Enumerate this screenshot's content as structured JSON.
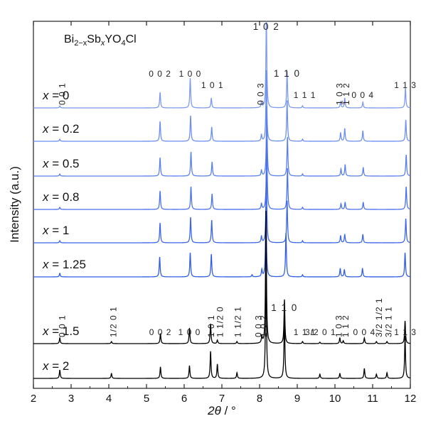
{
  "chart_data": {
    "type": "line",
    "title": "",
    "compound": {
      "parts": [
        {
          "text": "Bi",
          "style": "normal"
        },
        {
          "text": "2−x",
          "style": "sub"
        },
        {
          "text": "Sb",
          "style": "normal"
        },
        {
          "text": "x",
          "style": "sub-italic"
        },
        {
          "text": "YO",
          "style": "normal"
        },
        {
          "text": "4",
          "style": "sub"
        },
        {
          "text": "Cl",
          "style": "normal"
        }
      ]
    },
    "xlabel": {
      "var": "2θ",
      "unit": " / °"
    },
    "ylabel": "Intensity (a.u.)",
    "xlim": [
      2,
      12
    ],
    "xticks": [
      2,
      3,
      4,
      5,
      6,
      7,
      8,
      9,
      10,
      11,
      12
    ],
    "colors": {
      "x0": "#7c9bf0",
      "x0.2": "#6b8ff3",
      "x0.5": "#5a80f0",
      "x0.8": "#4a72ee",
      "x1": "#3b66ea",
      "x1.25": "#2f5ee6",
      "x1.5": "#000000",
      "x2": "#000000"
    },
    "series": [
      {
        "name": "x = 0",
        "var": "x",
        "val": "0",
        "peaks": [
          [
            2.7,
            3
          ],
          [
            5.36,
            22
          ],
          [
            6.16,
            42
          ],
          [
            6.72,
            14
          ],
          [
            8.05,
            8
          ],
          [
            8.18,
            130
          ],
          [
            8.73,
            52
          ],
          [
            9.14,
            3
          ],
          [
            10.15,
            9
          ],
          [
            10.26,
            14
          ],
          [
            10.74,
            8
          ],
          [
            11.87,
            28
          ]
        ]
      },
      {
        "name": "x = 0.2",
        "var": "x",
        "val": "0.2",
        "peaks": [
          [
            2.7,
            3
          ],
          [
            5.36,
            28
          ],
          [
            6.17,
            36
          ],
          [
            6.73,
            20
          ],
          [
            8.05,
            9
          ],
          [
            8.18,
            100
          ],
          [
            8.73,
            58
          ],
          [
            9.14,
            3
          ],
          [
            10.15,
            12
          ],
          [
            10.26,
            18
          ],
          [
            10.74,
            15
          ],
          [
            11.88,
            30
          ]
        ]
      },
      {
        "name": "x = 0.5",
        "var": "x",
        "val": "0.5",
        "peaks": [
          [
            2.7,
            3
          ],
          [
            5.36,
            26
          ],
          [
            6.18,
            34
          ],
          [
            6.74,
            20
          ],
          [
            8.05,
            8
          ],
          [
            8.19,
            100
          ],
          [
            8.74,
            55
          ],
          [
            9.14,
            3
          ],
          [
            10.16,
            10
          ],
          [
            10.27,
            16
          ],
          [
            10.75,
            12
          ],
          [
            11.89,
            30
          ]
        ]
      },
      {
        "name": "x = 0.8",
        "var": "x",
        "val": "0.8",
        "peaks": [
          [
            2.7,
            3
          ],
          [
            5.36,
            26
          ],
          [
            6.18,
            32
          ],
          [
            6.74,
            22
          ],
          [
            8.05,
            8
          ],
          [
            8.19,
            100
          ],
          [
            8.74,
            58
          ],
          [
            9.14,
            3
          ],
          [
            10.16,
            8
          ],
          [
            10.27,
            10
          ],
          [
            10.75,
            10
          ],
          [
            11.89,
            32
          ]
        ]
      },
      {
        "name": "x = 1",
        "var": "x",
        "val": "1",
        "peaks": [
          [
            2.7,
            3
          ],
          [
            5.36,
            28
          ],
          [
            6.17,
            36
          ],
          [
            6.73,
            32
          ],
          [
            8.05,
            9
          ],
          [
            8.18,
            100
          ],
          [
            8.73,
            60
          ],
          [
            9.14,
            3
          ],
          [
            10.15,
            10
          ],
          [
            10.26,
            12
          ],
          [
            10.74,
            12
          ],
          [
            11.88,
            34
          ]
        ]
      },
      {
        "name": "x = 1.25",
        "var": "x",
        "val": "1.25",
        "peaks": [
          [
            2.7,
            5
          ],
          [
            5.35,
            28
          ],
          [
            6.16,
            34
          ],
          [
            6.72,
            32
          ],
          [
            7.8,
            3
          ],
          [
            8.06,
            10
          ],
          [
            8.17,
            100
          ],
          [
            8.7,
            62
          ],
          [
            9.14,
            3
          ],
          [
            10.14,
            12
          ],
          [
            10.25,
            10
          ],
          [
            10.73,
            12
          ],
          [
            11.86,
            34
          ]
        ]
      },
      {
        "name": "x = 1.5",
        "var": "x",
        "val": "1.5",
        "peaks": [
          [
            2.7,
            8
          ],
          [
            4.07,
            3
          ],
          [
            5.37,
            14
          ],
          [
            6.14,
            22
          ],
          [
            6.7,
            28
          ],
          [
            6.88,
            5
          ],
          [
            7.4,
            3
          ],
          [
            8.06,
            9
          ],
          [
            8.17,
            190
          ],
          [
            8.66,
            62
          ],
          [
            9.14,
            3
          ],
          [
            9.6,
            2
          ],
          [
            10.13,
            8
          ],
          [
            10.22,
            4
          ],
          [
            10.78,
            8
          ],
          [
            11.1,
            3
          ],
          [
            11.38,
            3
          ],
          [
            11.86,
            32
          ]
        ]
      },
      {
        "name": "x = 2",
        "var": "x",
        "val": "2",
        "peaks": [
          [
            2.7,
            12
          ],
          [
            4.07,
            7
          ],
          [
            5.37,
            16
          ],
          [
            6.14,
            18
          ],
          [
            6.7,
            38
          ],
          [
            6.88,
            20
          ],
          [
            7.4,
            8
          ],
          [
            8.17,
            180
          ],
          [
            8.66,
            90
          ],
          [
            9.6,
            6
          ],
          [
            10.13,
            7
          ],
          [
            10.78,
            14
          ],
          [
            11.1,
            6
          ],
          [
            11.38,
            8
          ],
          [
            11.86,
            60
          ]
        ]
      }
    ],
    "annotations_top": [
      {
        "x": 2.76,
        "text": "0 0 1",
        "rot": true
      },
      {
        "x": 5.36,
        "text": "0 0 2",
        "rot": false
      },
      {
        "x": 6.16,
        "text": "1 0 0",
        "rot": false
      },
      {
        "x": 6.75,
        "text": "1 0 1",
        "rot": false
      },
      {
        "x": 8.03,
        "text": "0 0 3",
        "rot": true
      },
      {
        "x": 8.18,
        "text": "1 0 2",
        "rot": false,
        "big": true
      },
      {
        "x": 8.73,
        "text": "1 1 0",
        "rot": false,
        "big": true
      },
      {
        "x": 9.2,
        "text": "1 1 1",
        "rot": false
      },
      {
        "x": 10.12,
        "text": "1 0 3",
        "rot": true
      },
      {
        "x": 10.3,
        "text": "1 1 2",
        "rot": true
      },
      {
        "x": 10.74,
        "text": "0 0 4",
        "rot": false
      },
      {
        "x": 11.87,
        "text": "1 1 3",
        "rot": false
      }
    ],
    "annotations_mid": [
      {
        "x": 2.76,
        "text": "0 0 1",
        "rot": true
      },
      {
        "x": 4.12,
        "text": "1/2 0 1",
        "rot": true
      },
      {
        "x": 5.37,
        "text": "0 0 2",
        "rot": false
      },
      {
        "x": 6.14,
        "text": "1 0 0",
        "rot": false
      },
      {
        "x": 6.72,
        "text": "1 0 1",
        "rot": true
      },
      {
        "x": 6.95,
        "text": "1 1/2 0",
        "rot": true
      },
      {
        "x": 7.42,
        "text": "1 1/2 1",
        "rot": true
      },
      {
        "x": 7.97,
        "text": "0 0 3",
        "rot": true
      },
      {
        "x": 8.1,
        "text": "1 0 2",
        "rot": true
      },
      {
        "x": 8.66,
        "text": "1 1 0",
        "rot": false,
        "big": true
      },
      {
        "x": 9.2,
        "text": "1 1 1",
        "rot": false
      },
      {
        "x": 9.62,
        "text": "3/2 0 1",
        "rot": false
      },
      {
        "x": 10.1,
        "text": "1 0 3",
        "rot": true
      },
      {
        "x": 10.28,
        "text": "1 1 2",
        "rot": true
      },
      {
        "x": 10.78,
        "text": "0 0 4",
        "rot": false
      },
      {
        "x": 11.17,
        "text": "3/2 1/2 1",
        "rot": true
      },
      {
        "x": 11.42,
        "text": "3/2 1 1",
        "rot": true
      },
      {
        "x": 11.87,
        "text": "1 1 3",
        "rot": false
      }
    ]
  }
}
